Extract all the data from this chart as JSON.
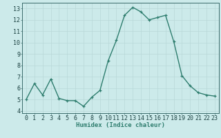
{
  "x": [
    0,
    1,
    2,
    3,
    4,
    5,
    6,
    7,
    8,
    9,
    10,
    11,
    12,
    13,
    14,
    15,
    16,
    17,
    18,
    19,
    20,
    21,
    22,
    23
  ],
  "y": [
    5.0,
    6.4,
    5.4,
    6.8,
    5.1,
    4.9,
    4.9,
    4.4,
    5.2,
    5.8,
    8.4,
    10.2,
    12.4,
    13.1,
    12.7,
    12.0,
    12.2,
    12.4,
    10.1,
    7.1,
    6.2,
    5.6,
    5.4,
    5.3
  ],
  "line_color": "#2e7d6e",
  "bg_color": "#cceaea",
  "grid_color": "#b8d8d8",
  "xlabel": "Humidex (Indice chaleur)",
  "xlim": [
    -0.5,
    23.5
  ],
  "ylim": [
    3.8,
    13.5
  ],
  "yticks": [
    4,
    5,
    6,
    7,
    8,
    9,
    10,
    11,
    12,
    13
  ],
  "xticks": [
    0,
    1,
    2,
    3,
    4,
    5,
    6,
    7,
    8,
    9,
    10,
    11,
    12,
    13,
    14,
    15,
    16,
    17,
    18,
    19,
    20,
    21,
    22,
    23
  ],
  "label_fontsize": 6.5,
  "tick_fontsize": 6.0,
  "marker_size": 3.5,
  "line_width": 1.0
}
